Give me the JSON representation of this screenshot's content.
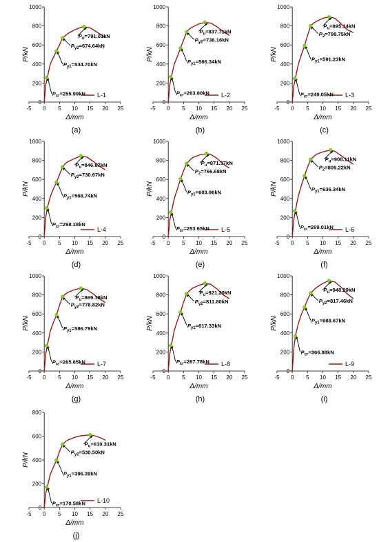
{
  "colors": {
    "curve": "#9b1c14",
    "point": "#7ed321",
    "text": "#000000"
  },
  "chart_data": [
    {
      "type": "line",
      "panel_label": "(a)",
      "legend": "L-1",
      "ylim": [
        0,
        1000
      ],
      "yticks": [
        0,
        200,
        400,
        600,
        800,
        1000
      ],
      "xlim": [
        -5,
        25
      ],
      "xticks": [
        -5,
        0,
        5,
        10,
        15,
        20,
        25
      ],
      "xlabel": "Δ/mm",
      "ylabel": "P/kN",
      "x": [
        0,
        0.5,
        1,
        2,
        3,
        4,
        5,
        6,
        7,
        8,
        10,
        12,
        13,
        15,
        17,
        19,
        20
      ],
      "y": [
        0,
        180,
        255.99,
        400,
        470,
        534.7,
        600,
        674.64,
        700,
        725,
        760,
        785,
        791.01,
        780,
        740,
        700,
        680
      ],
      "points": [
        {
          "sym": "P",
          "sub": "cr",
          "text": "=255.99kN",
          "x": 0.8,
          "y": 255.99
        },
        {
          "sym": "P",
          "sub": "y1",
          "text": "=534.70kN",
          "x": 4,
          "y": 534.7
        },
        {
          "sym": "P",
          "sub": "y2",
          "text": "=674.64kN",
          "x": 6,
          "y": 674.64
        },
        {
          "sym": "P",
          "sub": "u",
          "text": "=791.01kN",
          "x": 13,
          "y": 791.01
        }
      ]
    },
    {
      "type": "line",
      "panel_label": "(b)",
      "legend": "L-2",
      "ylim": [
        0,
        1000
      ],
      "yticks": [
        0,
        200,
        400,
        600,
        800,
        1000
      ],
      "xlim": [
        -5,
        25
      ],
      "xticks": [
        -5,
        0,
        5,
        10,
        15,
        20,
        25
      ],
      "xlabel": "Δ/mm",
      "ylabel": "P/kN",
      "x": [
        0,
        0.5,
        1,
        2,
        3,
        4,
        5,
        6,
        7,
        8,
        10,
        12,
        14,
        16,
        18,
        20
      ],
      "y": [
        0,
        180,
        263.8,
        400,
        480,
        566.34,
        650,
        736.16,
        770,
        790,
        820,
        837.71,
        830,
        790,
        740,
        700
      ],
      "points": [
        {
          "sym": "P",
          "sub": "cr",
          "text": "=263.80kN",
          "x": 0.8,
          "y": 263.8
        },
        {
          "sym": "P",
          "sub": "y1",
          "text": "=566.34kN",
          "x": 4,
          "y": 566.34
        },
        {
          "sym": "P",
          "sub": "y2",
          "text": "=736.16kN",
          "x": 6,
          "y": 736.16
        },
        {
          "sym": "P",
          "sub": "u",
          "text": "=837.71kN",
          "x": 12,
          "y": 837.71
        }
      ]
    },
    {
      "type": "line",
      "panel_label": "(c)",
      "legend": "L-3",
      "ylim": [
        0,
        1000
      ],
      "yticks": [
        0,
        200,
        400,
        600,
        800,
        1000
      ],
      "xlim": [
        -5,
        25
      ],
      "xticks": [
        -5,
        0,
        5,
        10,
        15,
        20,
        25
      ],
      "xlabel": "Δ/mm",
      "ylabel": "P/kN",
      "x": [
        0,
        0.5,
        1,
        2,
        3,
        4,
        5,
        6,
        7,
        8,
        10,
        12,
        14,
        16,
        18,
        20
      ],
      "y": [
        0,
        170,
        249.05,
        400,
        500,
        591.23,
        700,
        798.75,
        830,
        850,
        880,
        895.14,
        880,
        820,
        760,
        730
      ],
      "points": [
        {
          "sym": "P",
          "sub": "cr",
          "text": "=249.05kN",
          "x": 0.8,
          "y": 249.05
        },
        {
          "sym": "P",
          "sub": "y1",
          "text": "=591.23kN",
          "x": 4,
          "y": 591.23
        },
        {
          "sym": "P",
          "sub": "2",
          "text": "=798.75kN",
          "x": 6,
          "y": 798.75
        },
        {
          "sym": "P",
          "sub": "u",
          "text": "=895.14kN",
          "x": 12,
          "y": 895.14
        }
      ]
    },
    {
      "type": "line",
      "panel_label": "(d)",
      "legend": "L-4",
      "ylim": [
        0,
        1000
      ],
      "yticks": [
        0,
        200,
        400,
        600,
        800,
        1000
      ],
      "xlim": [
        -5,
        25
      ],
      "xticks": [
        -5,
        0,
        5,
        10,
        15,
        20,
        25
      ],
      "xlabel": "Δ/mm",
      "ylabel": "P/kN",
      "x": [
        0,
        0.5,
        1,
        2,
        3,
        4,
        5,
        6,
        7,
        8,
        10,
        12,
        14,
        16,
        18,
        20
      ],
      "y": [
        0,
        200,
        298.18,
        420,
        500,
        568.74,
        650,
        730.67,
        770,
        790,
        820,
        846.67,
        835,
        790,
        740,
        700
      ],
      "points": [
        {
          "sym": "P",
          "sub": "cr",
          "text": "=298.18kN",
          "x": 0.8,
          "y": 298.18
        },
        {
          "sym": "P",
          "sub": "y1",
          "text": "=568.74kN",
          "x": 4,
          "y": 568.74
        },
        {
          "sym": "P",
          "sub": "y2",
          "text": "=730.67kN",
          "x": 6,
          "y": 730.67
        },
        {
          "sym": "P",
          "sub": "u",
          "text": "=846.67kN",
          "x": 12,
          "y": 846.67
        }
      ]
    },
    {
      "type": "line",
      "panel_label": "(e)",
      "legend": "L-5",
      "ylim": [
        0,
        1000
      ],
      "yticks": [
        0,
        200,
        400,
        600,
        800,
        1000
      ],
      "xlim": [
        -5,
        25
      ],
      "xticks": [
        -5,
        0,
        5,
        10,
        15,
        20,
        25
      ],
      "xlabel": "Δ/mm",
      "ylabel": "P/kN",
      "x": [
        0,
        0.5,
        1,
        2,
        3,
        4,
        5,
        6,
        7,
        8,
        10,
        12.5,
        14,
        16,
        18,
        20
      ],
      "y": [
        0,
        170,
        253.65,
        400,
        500,
        603.96,
        690,
        766.68,
        800,
        830,
        855,
        871.37,
        860,
        820,
        760,
        720
      ],
      "points": [
        {
          "sym": "P",
          "sub": "cr",
          "text": "=253.65kN",
          "x": 0.8,
          "y": 253.65
        },
        {
          "sym": "P",
          "sub": "y1",
          "text": "=603.96kN",
          "x": 4,
          "y": 603.96
        },
        {
          "sym": "P",
          "sub": "2",
          "text": "=766.68kN",
          "x": 6,
          "y": 766.68
        },
        {
          "sym": "P",
          "sub": "u",
          "text": "=871.37kN",
          "x": 12.5,
          "y": 871.37
        }
      ]
    },
    {
      "type": "line",
      "panel_label": "(f)",
      "legend": "L-6",
      "ylim": [
        0,
        1000
      ],
      "yticks": [
        0,
        200,
        400,
        600,
        800,
        1000
      ],
      "xlim": [
        -5,
        25
      ],
      "xticks": [
        -5,
        0,
        5,
        10,
        15,
        20,
        25
      ],
      "xlabel": "Δ/mm",
      "ylabel": "P/kN",
      "x": [
        0,
        0.5,
        1,
        2,
        3,
        4,
        5,
        6,
        7,
        8,
        10,
        12.5,
        14,
        16,
        18,
        20
      ],
      "y": [
        0,
        180,
        269.01,
        430,
        540,
        636.34,
        730,
        809.22,
        840,
        865,
        890,
        908.11,
        895,
        850,
        800,
        760
      ],
      "points": [
        {
          "sym": "P",
          "sub": "cr",
          "text": "=269.01kN",
          "x": 0.8,
          "y": 269.01
        },
        {
          "sym": "P",
          "sub": "y1",
          "text": "=636.34kN",
          "x": 4,
          "y": 636.34
        },
        {
          "sym": "P",
          "sub": "2",
          "text": "=809.22kN",
          "x": 6,
          "y": 809.22
        },
        {
          "sym": "P",
          "sub": "u",
          "text": "=908.11kN",
          "x": 12.5,
          "y": 908.11
        }
      ]
    },
    {
      "type": "line",
      "panel_label": "(g)",
      "legend": "L-7",
      "ylim": [
        0,
        1000
      ],
      "yticks": [
        0,
        200,
        400,
        600,
        800,
        1000
      ],
      "xlim": [
        -5,
        25
      ],
      "xticks": [
        -5,
        0,
        5,
        10,
        15,
        20,
        25
      ],
      "xlabel": "Δ/mm",
      "ylabel": "P/kN",
      "x": [
        0,
        0.5,
        1,
        2,
        3,
        4,
        5,
        6,
        7,
        8,
        10,
        12,
        14,
        16,
        18,
        20
      ],
      "y": [
        0,
        180,
        265.65,
        420,
        510,
        586.79,
        690,
        778.82,
        810,
        830,
        855,
        869.18,
        855,
        810,
        760,
        720
      ],
      "points": [
        {
          "sym": "P",
          "sub": "cr",
          "text": "=265.65kN",
          "x": 0.8,
          "y": 265.65
        },
        {
          "sym": "P",
          "sub": "y1",
          "text": "=586.79kN",
          "x": 4,
          "y": 586.79
        },
        {
          "sym": "P",
          "sub": "y2",
          "text": "=778.82kN",
          "x": 6,
          "y": 778.82
        },
        {
          "sym": "P",
          "sub": "u",
          "text": "=869.18kN",
          "x": 12,
          "y": 869.18
        }
      ]
    },
    {
      "type": "line",
      "panel_label": "(h)",
      "legend": "L-8",
      "ylim": [
        0,
        1000
      ],
      "yticks": [
        0,
        200,
        400,
        600,
        800,
        1000
      ],
      "xlim": [
        -5,
        25
      ],
      "xticks": [
        -5,
        0,
        5,
        10,
        15,
        20,
        25
      ],
      "xlabel": "Δ/mm",
      "ylabel": "P/kN",
      "x": [
        0,
        0.5,
        1,
        2,
        3,
        4,
        5,
        6,
        7,
        8,
        10,
        12,
        14,
        16,
        18,
        20
      ],
      "y": [
        0,
        180,
        267.78,
        430,
        530,
        617.33,
        720,
        811.8,
        845,
        870,
        900,
        921.2,
        910,
        860,
        800,
        760
      ],
      "points": [
        {
          "sym": "P",
          "sub": "cr",
          "text": "=267.78kN",
          "x": 0.8,
          "y": 267.78
        },
        {
          "sym": "P",
          "sub": "y1",
          "text": "=617.33kN",
          "x": 4,
          "y": 617.33
        },
        {
          "sym": "P",
          "sub": "y2",
          "text": "=811.80kN",
          "x": 6,
          "y": 811.8
        },
        {
          "sym": "P",
          "sub": "u",
          "text": "=921.20kN",
          "x": 12,
          "y": 921.2
        }
      ]
    },
    {
      "type": "line",
      "panel_label": "(i)",
      "legend": "L-9",
      "ylim": [
        0,
        1000
      ],
      "yticks": [
        0,
        200,
        400,
        600,
        800,
        1000
      ],
      "xlim": [
        -5,
        25
      ],
      "xticks": [
        -5,
        0,
        5,
        10,
        15,
        20,
        25
      ],
      "xlabel": "Δ/mm",
      "ylabel": "P/kN",
      "x": [
        0,
        0.5,
        1,
        2,
        3,
        4,
        5,
        6,
        7,
        8,
        10,
        12,
        14,
        16,
        18,
        20
      ],
      "y": [
        0,
        240,
        366.88,
        500,
        600,
        668.67,
        750,
        817.46,
        850,
        880,
        920,
        948.2,
        935,
        880,
        810,
        760
      ],
      "points": [
        {
          "sym": "P",
          "sub": "cr",
          "text": "=366.88kN",
          "x": 1,
          "y": 366.88
        },
        {
          "sym": "P",
          "sub": "y1",
          "text": "=668.67kN",
          "x": 4,
          "y": 668.67
        },
        {
          "sym": "P",
          "sub": "y2",
          "text": "=817.46kN",
          "x": 6,
          "y": 817.46
        },
        {
          "sym": "P",
          "sub": "u",
          "text": "=948.20kN",
          "x": 12,
          "y": 948.2
        }
      ]
    },
    {
      "type": "line",
      "panel_label": "(j)",
      "legend": "L-10",
      "ylim": [
        0,
        800
      ],
      "yticks": [
        0,
        200,
        400,
        600,
        800
      ],
      "xlim": [
        -5,
        25
      ],
      "xticks": [
        -5,
        0,
        5,
        10,
        15,
        20,
        25
      ],
      "xlabel": "Δ/mm",
      "ylabel": "P/kN",
      "x": [
        0,
        0.5,
        1,
        2,
        3,
        4,
        5,
        6,
        7,
        8,
        10,
        12,
        15,
        17,
        19,
        20
      ],
      "y": [
        0,
        120,
        170.58,
        280,
        340,
        396.39,
        470,
        530.5,
        555,
        570,
        590,
        603,
        610.31,
        600,
        580,
        565
      ],
      "points": [
        {
          "sym": "P",
          "sub": "cr",
          "text": "=170.58kN",
          "x": 0.8,
          "y": 170.58
        },
        {
          "sym": "P",
          "sub": "y1",
          "text": "=396.39kN",
          "x": 4,
          "y": 396.39
        },
        {
          "sym": "P",
          "sub": "y2",
          "text": "=530.50kN",
          "x": 6,
          "y": 530.5
        },
        {
          "sym": "P",
          "sub": "u",
          "text": "=610.31kN",
          "x": 15,
          "y": 610.31
        }
      ]
    }
  ]
}
